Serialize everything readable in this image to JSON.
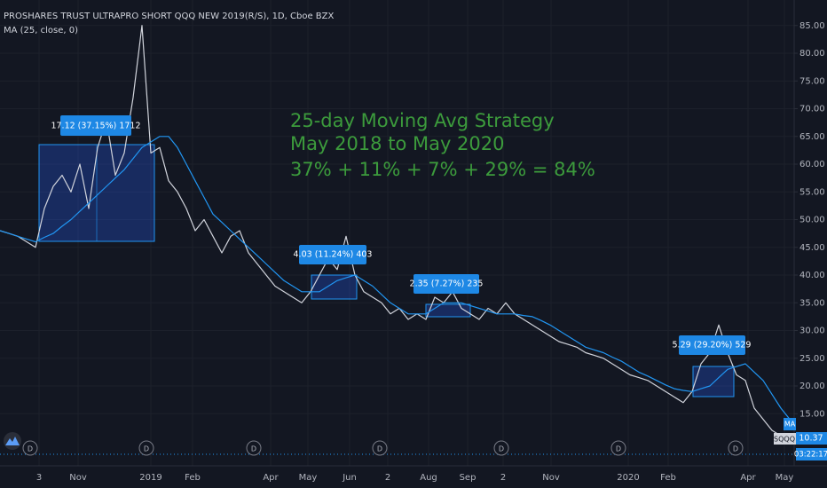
{
  "chart_data": {
    "type": "line",
    "title": "PROSHARES TRUST ULTRAPRO SHORT QQQ NEW 2019(R/S), 1D, Cboe BZX",
    "indicator": "MA (25, close, 0)",
    "annotation_lines": [
      "25-day Moving Avg Strategy",
      "May 2018 to May 2020",
      "37% + 11% + 7% + 29% = 84%"
    ],
    "trade_labels": [
      "17.12 (37.15%) 1712",
      "4.03 (11.24%) 403",
      "2.35 (7.27%) 235",
      "5.29 (29.20%) 529"
    ],
    "event_markers": [
      "D",
      "D",
      "D",
      "D",
      "D",
      "D",
      "D"
    ],
    "ma_tag": "MA",
    "symbol": "SQQQ",
    "last_price": {
      "value": 10.37,
      "label": "10.37"
    },
    "countdown": "03:22:17",
    "x": [
      0,
      1,
      2,
      3,
      4,
      5,
      6,
      7,
      8,
      9,
      10,
      11,
      12,
      13,
      14,
      15,
      16,
      17,
      18,
      19,
      20,
      21,
      22,
      23,
      24,
      25,
      26,
      27,
      28,
      29,
      30,
      31,
      32,
      33,
      34,
      35,
      36,
      37,
      38,
      39,
      40,
      41,
      42,
      43,
      44,
      45,
      46,
      47,
      48,
      49,
      50,
      51,
      52,
      53,
      54,
      55,
      56,
      57,
      58,
      59,
      60,
      61,
      62,
      63,
      64,
      65,
      66,
      67,
      68,
      69,
      70,
      71,
      72,
      73,
      74,
      75,
      76,
      77,
      78,
      79,
      80,
      81,
      82,
      83,
      84,
      85,
      86,
      87,
      88,
      89
    ],
    "xlim": [
      0,
      89.5
    ],
    "xticks": [
      {
        "value": 4.4,
        "label": "3"
      },
      {
        "value": 8.8,
        "label": "Nov"
      },
      {
        "value": 17,
        "label": "2019"
      },
      {
        "value": 21.7,
        "label": "Feb"
      },
      {
        "value": 30.5,
        "label": "Apr"
      },
      {
        "value": 34.7,
        "label": "May"
      },
      {
        "value": 39.4,
        "label": "Jun"
      },
      {
        "value": 43.7,
        "label": "2"
      },
      {
        "value": 48.3,
        "label": "Aug"
      },
      {
        "value": 52.7,
        "label": "Sep"
      },
      {
        "value": 56.7,
        "label": "2"
      },
      {
        "value": 62.1,
        "label": "Nov"
      },
      {
        "value": 70.8,
        "label": "2020"
      },
      {
        "value": 75.3,
        "label": "Feb"
      },
      {
        "value": 84.3,
        "label": "Apr"
      },
      {
        "value": 88.4,
        "label": "May"
      }
    ],
    "ylim": [
      5.6,
      89.6
    ],
    "yticks": [
      {
        "value": 15,
        "label": "15.00"
      },
      {
        "value": 20,
        "label": "20.00"
      },
      {
        "value": 25,
        "label": "25.00"
      },
      {
        "value": 30,
        "label": "30.00"
      },
      {
        "value": 35,
        "label": "35.00"
      },
      {
        "value": 40,
        "label": "40.00"
      },
      {
        "value": 45,
        "label": "45.00"
      },
      {
        "value": 50,
        "label": "50.00"
      },
      {
        "value": 55,
        "label": "55.00"
      },
      {
        "value": 60,
        "label": "60.00"
      },
      {
        "value": 65,
        "label": "65.00"
      },
      {
        "value": 70,
        "label": "70.00"
      },
      {
        "value": 75,
        "label": "75.00"
      },
      {
        "value": 80,
        "label": "80.00"
      },
      {
        "value": 85,
        "label": "85.00"
      }
    ],
    "grid": true,
    "series": [
      {
        "name": "SQQQ",
        "color": "#d1d4dc",
        "values": [
          48,
          47.5,
          47,
          46,
          45,
          52,
          56,
          58,
          55,
          60,
          52,
          63,
          68,
          58,
          62,
          72,
          85,
          62,
          63,
          57,
          55,
          52,
          48,
          50,
          47,
          44,
          47,
          48,
          44,
          42,
          40,
          38,
          37,
          36,
          35,
          37,
          40,
          43,
          41,
          47,
          40,
          37,
          36,
          35,
          33,
          34,
          32,
          33,
          32,
          36,
          35,
          37,
          34,
          33,
          32,
          34,
          33,
          35,
          33,
          32,
          31,
          30,
          29,
          28,
          27.5,
          27,
          26,
          25.5,
          25,
          24,
          23,
          22,
          21.5,
          21,
          20,
          19,
          18,
          17,
          19,
          24,
          26,
          31,
          26,
          22,
          21,
          16,
          14,
          12,
          11,
          10.5
        ]
      },
      {
        "name": "MA",
        "color": "#2196f3",
        "values": [
          48,
          47.5,
          47,
          46.5,
          46,
          46.8,
          47.5,
          48.8,
          50,
          51.5,
          53,
          54.5,
          56,
          57.5,
          59,
          61,
          63,
          64,
          65,
          65,
          63,
          60,
          57,
          54,
          51,
          49.5,
          48,
          46.5,
          45,
          43.5,
          42,
          40.5,
          39,
          38,
          37,
          37,
          37,
          38,
          39,
          39.5,
          40,
          39,
          38,
          36.5,
          35,
          34,
          33,
          33,
          33,
          34,
          35,
          35,
          35,
          34.5,
          34,
          33.5,
          33,
          33,
          33,
          32.7,
          32.5,
          31.8,
          31,
          30,
          29,
          28,
          27,
          26.5,
          26,
          25.2,
          24.5,
          23.5,
          22.5,
          21.8,
          21,
          20.2,
          19.5,
          19.2,
          19,
          19.5,
          20,
          21.5,
          23,
          23.5,
          24,
          22.5,
          21,
          18.5,
          16,
          14
        ]
      }
    ]
  }
}
